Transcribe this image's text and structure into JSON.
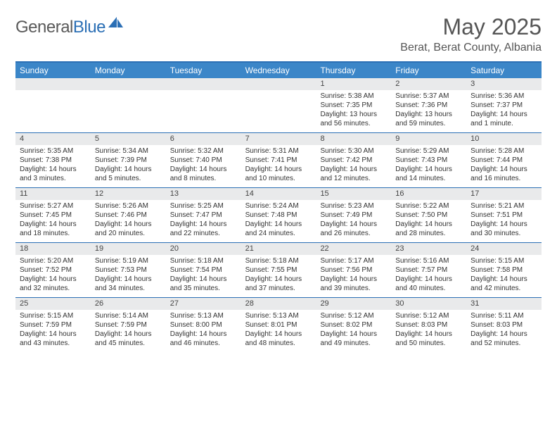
{
  "brand": {
    "part1": "General",
    "part2": "Blue"
  },
  "title": "May 2025",
  "location": "Berat, Berat County, Albania",
  "colors": {
    "header_bar": "#3b86c8",
    "rule": "#2b6fb5",
    "daynum_bg": "#e9eaeb",
    "text": "#333333",
    "title_text": "#555555",
    "logo_gray": "#5a5a5a"
  },
  "dow": [
    "Sunday",
    "Monday",
    "Tuesday",
    "Wednesday",
    "Thursday",
    "Friday",
    "Saturday"
  ],
  "weeks": [
    [
      {
        "n": "",
        "sr": "",
        "ss": "",
        "dl": ""
      },
      {
        "n": "",
        "sr": "",
        "ss": "",
        "dl": ""
      },
      {
        "n": "",
        "sr": "",
        "ss": "",
        "dl": ""
      },
      {
        "n": "",
        "sr": "",
        "ss": "",
        "dl": ""
      },
      {
        "n": "1",
        "sr": "Sunrise: 5:38 AM",
        "ss": "Sunset: 7:35 PM",
        "dl": "Daylight: 13 hours and 56 minutes."
      },
      {
        "n": "2",
        "sr": "Sunrise: 5:37 AM",
        "ss": "Sunset: 7:36 PM",
        "dl": "Daylight: 13 hours and 59 minutes."
      },
      {
        "n": "3",
        "sr": "Sunrise: 5:36 AM",
        "ss": "Sunset: 7:37 PM",
        "dl": "Daylight: 14 hours and 1 minute."
      }
    ],
    [
      {
        "n": "4",
        "sr": "Sunrise: 5:35 AM",
        "ss": "Sunset: 7:38 PM",
        "dl": "Daylight: 14 hours and 3 minutes."
      },
      {
        "n": "5",
        "sr": "Sunrise: 5:34 AM",
        "ss": "Sunset: 7:39 PM",
        "dl": "Daylight: 14 hours and 5 minutes."
      },
      {
        "n": "6",
        "sr": "Sunrise: 5:32 AM",
        "ss": "Sunset: 7:40 PM",
        "dl": "Daylight: 14 hours and 8 minutes."
      },
      {
        "n": "7",
        "sr": "Sunrise: 5:31 AM",
        "ss": "Sunset: 7:41 PM",
        "dl": "Daylight: 14 hours and 10 minutes."
      },
      {
        "n": "8",
        "sr": "Sunrise: 5:30 AM",
        "ss": "Sunset: 7:42 PM",
        "dl": "Daylight: 14 hours and 12 minutes."
      },
      {
        "n": "9",
        "sr": "Sunrise: 5:29 AM",
        "ss": "Sunset: 7:43 PM",
        "dl": "Daylight: 14 hours and 14 minutes."
      },
      {
        "n": "10",
        "sr": "Sunrise: 5:28 AM",
        "ss": "Sunset: 7:44 PM",
        "dl": "Daylight: 14 hours and 16 minutes."
      }
    ],
    [
      {
        "n": "11",
        "sr": "Sunrise: 5:27 AM",
        "ss": "Sunset: 7:45 PM",
        "dl": "Daylight: 14 hours and 18 minutes."
      },
      {
        "n": "12",
        "sr": "Sunrise: 5:26 AM",
        "ss": "Sunset: 7:46 PM",
        "dl": "Daylight: 14 hours and 20 minutes."
      },
      {
        "n": "13",
        "sr": "Sunrise: 5:25 AM",
        "ss": "Sunset: 7:47 PM",
        "dl": "Daylight: 14 hours and 22 minutes."
      },
      {
        "n": "14",
        "sr": "Sunrise: 5:24 AM",
        "ss": "Sunset: 7:48 PM",
        "dl": "Daylight: 14 hours and 24 minutes."
      },
      {
        "n": "15",
        "sr": "Sunrise: 5:23 AM",
        "ss": "Sunset: 7:49 PM",
        "dl": "Daylight: 14 hours and 26 minutes."
      },
      {
        "n": "16",
        "sr": "Sunrise: 5:22 AM",
        "ss": "Sunset: 7:50 PM",
        "dl": "Daylight: 14 hours and 28 minutes."
      },
      {
        "n": "17",
        "sr": "Sunrise: 5:21 AM",
        "ss": "Sunset: 7:51 PM",
        "dl": "Daylight: 14 hours and 30 minutes."
      }
    ],
    [
      {
        "n": "18",
        "sr": "Sunrise: 5:20 AM",
        "ss": "Sunset: 7:52 PM",
        "dl": "Daylight: 14 hours and 32 minutes."
      },
      {
        "n": "19",
        "sr": "Sunrise: 5:19 AM",
        "ss": "Sunset: 7:53 PM",
        "dl": "Daylight: 14 hours and 34 minutes."
      },
      {
        "n": "20",
        "sr": "Sunrise: 5:18 AM",
        "ss": "Sunset: 7:54 PM",
        "dl": "Daylight: 14 hours and 35 minutes."
      },
      {
        "n": "21",
        "sr": "Sunrise: 5:18 AM",
        "ss": "Sunset: 7:55 PM",
        "dl": "Daylight: 14 hours and 37 minutes."
      },
      {
        "n": "22",
        "sr": "Sunrise: 5:17 AM",
        "ss": "Sunset: 7:56 PM",
        "dl": "Daylight: 14 hours and 39 minutes."
      },
      {
        "n": "23",
        "sr": "Sunrise: 5:16 AM",
        "ss": "Sunset: 7:57 PM",
        "dl": "Daylight: 14 hours and 40 minutes."
      },
      {
        "n": "24",
        "sr": "Sunrise: 5:15 AM",
        "ss": "Sunset: 7:58 PM",
        "dl": "Daylight: 14 hours and 42 minutes."
      }
    ],
    [
      {
        "n": "25",
        "sr": "Sunrise: 5:15 AM",
        "ss": "Sunset: 7:59 PM",
        "dl": "Daylight: 14 hours and 43 minutes."
      },
      {
        "n": "26",
        "sr": "Sunrise: 5:14 AM",
        "ss": "Sunset: 7:59 PM",
        "dl": "Daylight: 14 hours and 45 minutes."
      },
      {
        "n": "27",
        "sr": "Sunrise: 5:13 AM",
        "ss": "Sunset: 8:00 PM",
        "dl": "Daylight: 14 hours and 46 minutes."
      },
      {
        "n": "28",
        "sr": "Sunrise: 5:13 AM",
        "ss": "Sunset: 8:01 PM",
        "dl": "Daylight: 14 hours and 48 minutes."
      },
      {
        "n": "29",
        "sr": "Sunrise: 5:12 AM",
        "ss": "Sunset: 8:02 PM",
        "dl": "Daylight: 14 hours and 49 minutes."
      },
      {
        "n": "30",
        "sr": "Sunrise: 5:12 AM",
        "ss": "Sunset: 8:03 PM",
        "dl": "Daylight: 14 hours and 50 minutes."
      },
      {
        "n": "31",
        "sr": "Sunrise: 5:11 AM",
        "ss": "Sunset: 8:03 PM",
        "dl": "Daylight: 14 hours and 52 minutes."
      }
    ]
  ]
}
